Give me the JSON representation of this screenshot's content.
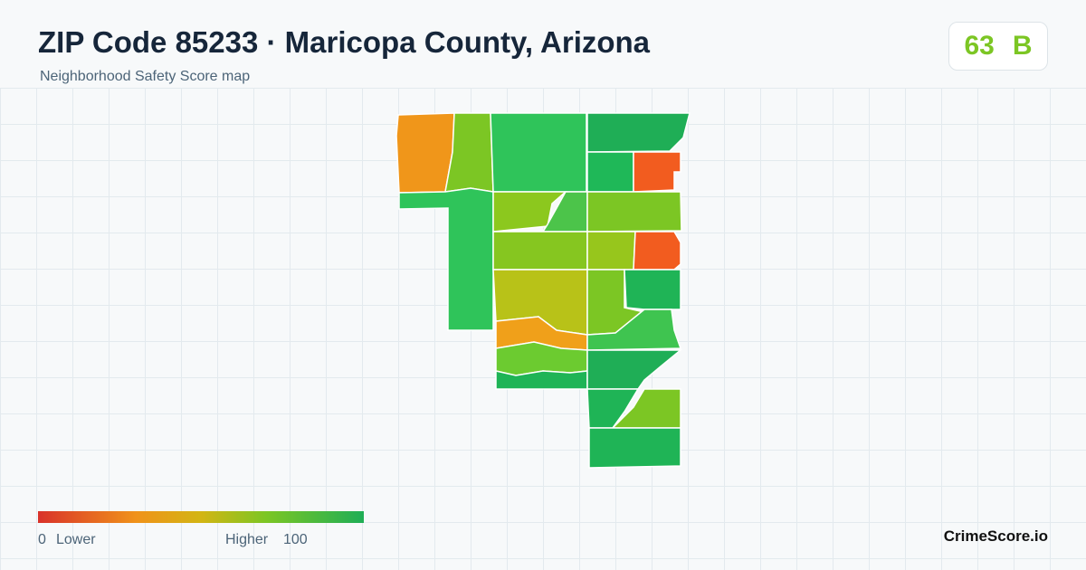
{
  "header": {
    "title": "ZIP Code 85233 · Maricopa County, Arizona",
    "subtitle": "Neighborhood Safety Score map"
  },
  "score": {
    "value": 63,
    "grade": "B"
  },
  "legend": {
    "min": 0,
    "min_label": "Lower",
    "max_label": "Higher",
    "max": 100
  },
  "brand": "CrimeScore.io"
}
